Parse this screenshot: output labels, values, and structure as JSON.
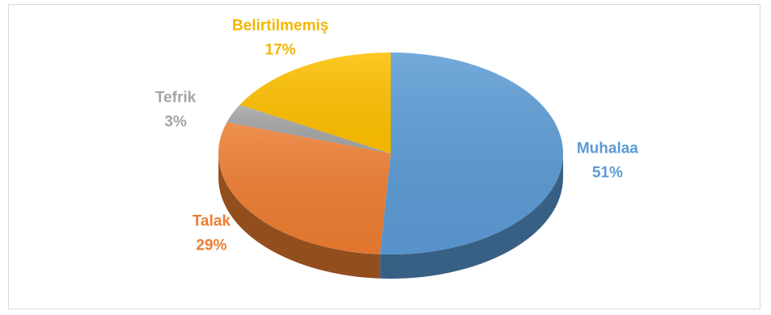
{
  "chart_data": {
    "type": "pie",
    "style": "3d",
    "title": "",
    "categories": [
      "Muhalaa",
      "Talak",
      "Tefrik",
      "Belirtilmemiş"
    ],
    "values": [
      51,
      29,
      3,
      17
    ],
    "labels": [
      "51%",
      "29%",
      "3%",
      "17%"
    ],
    "colors": [
      "#5b9bd5",
      "#ed7d31",
      "#a5a5a5",
      "#ffc000"
    ],
    "legend": "none"
  }
}
